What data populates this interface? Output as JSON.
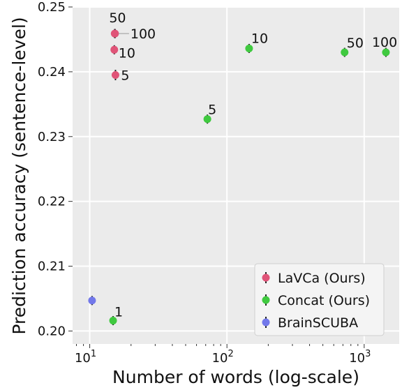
{
  "chart_data": {
    "type": "scatter",
    "xlabel": "Number of words (log-scale)",
    "ylabel": "Prediction accuracy (sentence-level)",
    "xscale": "log",
    "xlim": [
      7.5,
      1800
    ],
    "ylim": [
      0.198,
      0.25
    ],
    "grid": true,
    "legend_position": "lower-right",
    "y_ticks": [
      "0.20",
      "0.21",
      "0.22",
      "0.23",
      "0.24",
      "0.25"
    ],
    "x_ticks": [
      {
        "value": 10,
        "base": "10",
        "exp": "1"
      },
      {
        "value": 100,
        "base": "10",
        "exp": "2"
      },
      {
        "value": 1000,
        "base": "10",
        "exp": "3"
      }
    ],
    "series": [
      {
        "name": "LaVCa (Ours)",
        "color": "#e05478",
        "points": [
          {
            "x": 15.2,
            "y": 0.2459,
            "err": 0.0007,
            "label": "50"
          },
          {
            "x": 15.3,
            "y": 0.2459,
            "err": 0.0007,
            "label": "100"
          },
          {
            "x": 15.1,
            "y": 0.2434,
            "err": 0.0007,
            "label": "10"
          },
          {
            "x": 15.4,
            "y": 0.2395,
            "err": 0.0008,
            "label": "5"
          }
        ]
      },
      {
        "name": "Concat (Ours)",
        "color": "#3fc93f",
        "points": [
          {
            "x": 14.8,
            "y": 0.2016,
            "err": 0.0007,
            "label": "1"
          },
          {
            "x": 72,
            "y": 0.2327,
            "err": 0.0007,
            "label": "5"
          },
          {
            "x": 145,
            "y": 0.2436,
            "err": 0.0007,
            "label": "10"
          },
          {
            "x": 720,
            "y": 0.243,
            "err": 0.0007,
            "label": "50"
          },
          {
            "x": 1440,
            "y": 0.243,
            "err": 0.0007,
            "label": "100"
          }
        ]
      },
      {
        "name": "BrainSCUBA",
        "color": "#7278ea",
        "points": [
          {
            "x": 10.4,
            "y": 0.2047,
            "err": 0.0007,
            "label": ""
          }
        ]
      }
    ]
  }
}
